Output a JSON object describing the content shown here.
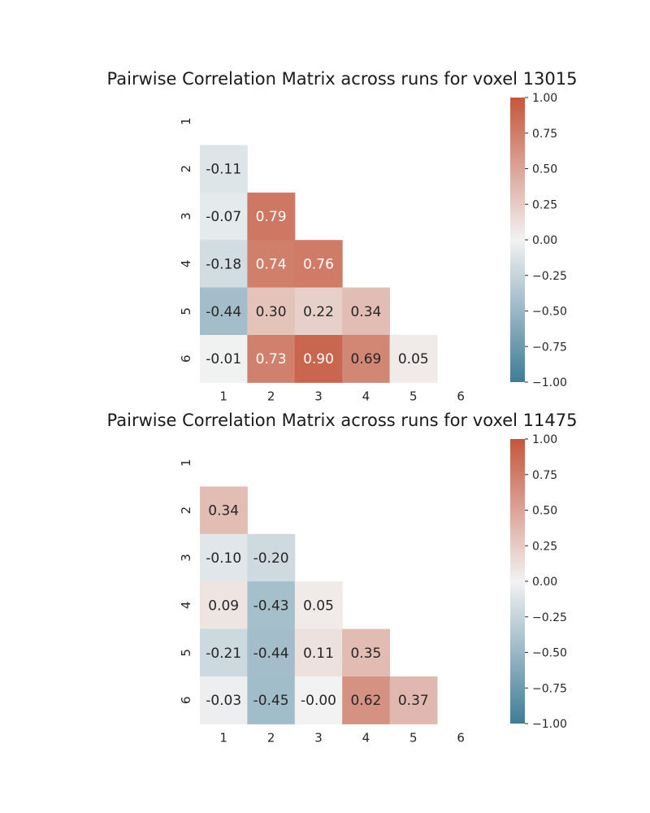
{
  "chart_data": [
    {
      "type": "heatmap",
      "title": "Pairwise Correlation Matrix across runs for voxel 13015",
      "row_labels": [
        "1",
        "2",
        "3",
        "4",
        "5",
        "6"
      ],
      "col_labels": [
        "1",
        "2",
        "3",
        "4",
        "5",
        "6"
      ],
      "mask": "upper-triangle-including-diagonal",
      "values": [
        [
          null,
          null,
          null,
          null,
          null,
          null
        ],
        [
          -0.11,
          null,
          null,
          null,
          null,
          null
        ],
        [
          -0.07,
          0.79,
          null,
          null,
          null,
          null
        ],
        [
          -0.18,
          0.74,
          0.76,
          null,
          null,
          null
        ],
        [
          -0.44,
          0.3,
          0.22,
          0.34,
          null,
          null
        ],
        [
          -0.01,
          0.73,
          0.9,
          0.69,
          0.05,
          null
        ]
      ],
      "value_format": "0.00",
      "colorbar": {
        "vmin": -1.0,
        "vmax": 1.0,
        "ticks": [
          "1.00",
          "0.75",
          "0.50",
          "0.25",
          "0.00",
          "−0.25",
          "−0.50",
          "−0.75",
          "−1.00"
        ],
        "colormap": "diverging",
        "low_color": "#3f7c98",
        "mid_color": "#f2f2f2",
        "high_color": "#c4563c"
      }
    },
    {
      "type": "heatmap",
      "title": "Pairwise Correlation Matrix across runs for voxel 11475",
      "row_labels": [
        "1",
        "2",
        "3",
        "4",
        "5",
        "6"
      ],
      "col_labels": [
        "1",
        "2",
        "3",
        "4",
        "5",
        "6"
      ],
      "mask": "upper-triangle-including-diagonal",
      "values": [
        [
          null,
          null,
          null,
          null,
          null,
          null
        ],
        [
          0.34,
          null,
          null,
          null,
          null,
          null
        ],
        [
          -0.1,
          -0.2,
          null,
          null,
          null,
          null
        ],
        [
          0.09,
          -0.43,
          0.05,
          null,
          null,
          null
        ],
        [
          -0.21,
          -0.44,
          0.11,
          0.35,
          null,
          null
        ],
        [
          -0.03,
          -0.45,
          -0.0,
          0.62,
          0.37,
          null
        ]
      ],
      "value_format": "0.00",
      "colorbar": {
        "vmin": -1.0,
        "vmax": 1.0,
        "ticks": [
          "1.00",
          "0.75",
          "0.50",
          "0.25",
          "0.00",
          "−0.25",
          "−0.50",
          "−0.75",
          "−1.00"
        ],
        "colormap": "diverging",
        "low_color": "#3f7c98",
        "mid_color": "#f2f2f2",
        "high_color": "#c4563c"
      }
    }
  ]
}
